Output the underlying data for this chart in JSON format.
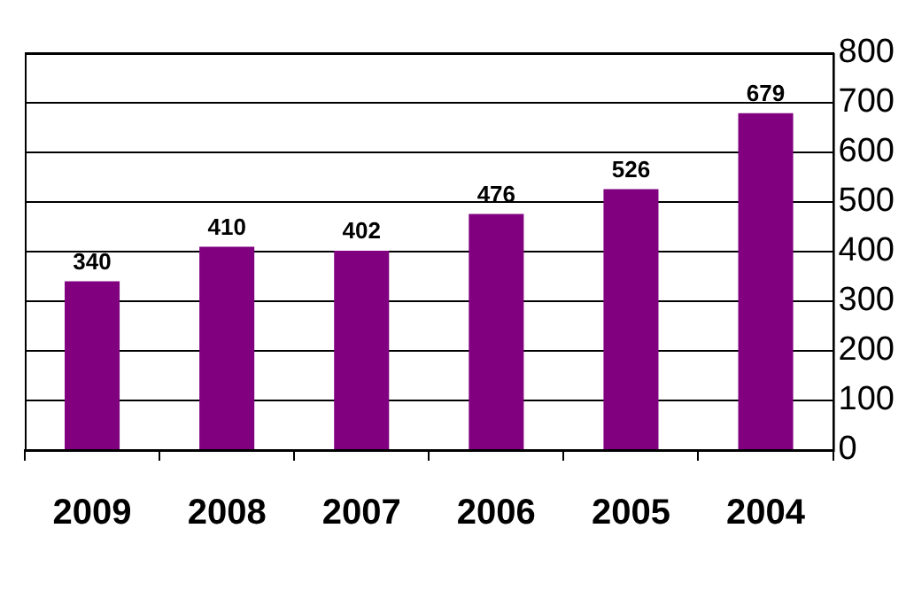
{
  "chart_data": {
    "type": "bar",
    "categories": [
      "2009",
      "2008",
      "2007",
      "2006",
      "2005",
      "2004"
    ],
    "values": [
      340,
      410,
      402,
      476,
      526,
      679
    ],
    "color": "#800080",
    "ylim": [
      0,
      800
    ],
    "yticks": [
      0,
      100,
      200,
      300,
      400,
      500,
      600,
      700,
      800
    ],
    "grid": "y",
    "data_labels": true,
    "legend": false
  }
}
